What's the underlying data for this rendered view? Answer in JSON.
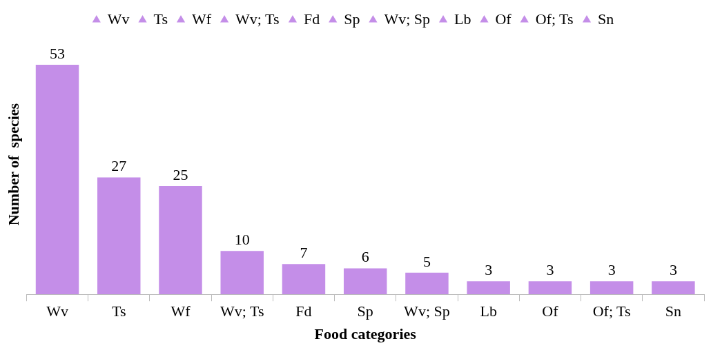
{
  "chart_data": {
    "type": "bar",
    "xlabel": "Food categories",
    "ylabel": "Number of  species",
    "categories": [
      "Wv",
      "Ts",
      "Wf",
      "Wv; Ts",
      "Fd",
      "Sp",
      "Wv; Sp",
      "Lb",
      "Of",
      "Of; Ts",
      "Sn"
    ],
    "series": [
      {
        "name": "Wv",
        "color": "#c48ee8",
        "values": [
          53,
          null,
          null,
          null,
          null,
          null,
          null,
          null,
          null,
          null,
          null
        ]
      },
      {
        "name": "Ts",
        "color": "#c48ee8",
        "values": [
          null,
          27,
          null,
          null,
          null,
          null,
          null,
          null,
          null,
          null,
          null
        ]
      },
      {
        "name": "Wf",
        "color": "#c48ee8",
        "values": [
          null,
          null,
          25,
          null,
          null,
          null,
          null,
          null,
          null,
          null,
          null
        ]
      },
      {
        "name": "Wv; Ts",
        "color": "#c48ee8",
        "values": [
          null,
          null,
          null,
          10,
          null,
          null,
          null,
          null,
          null,
          null,
          null
        ]
      },
      {
        "name": "Fd",
        "color": "#c48ee8",
        "values": [
          null,
          null,
          null,
          null,
          7,
          null,
          null,
          null,
          null,
          null,
          null
        ]
      },
      {
        "name": "Sp",
        "color": "#c48ee8",
        "values": [
          null,
          null,
          null,
          null,
          null,
          6,
          null,
          null,
          null,
          null,
          null
        ]
      },
      {
        "name": "Wv; Sp",
        "color": "#c48ee8",
        "values": [
          null,
          null,
          null,
          null,
          null,
          null,
          5,
          null,
          null,
          null,
          null
        ]
      },
      {
        "name": "Lb",
        "color": "#c48ee8",
        "values": [
          null,
          null,
          null,
          null,
          null,
          null,
          null,
          3,
          null,
          null,
          null
        ]
      },
      {
        "name": "Of",
        "color": "#c48ee8",
        "values": [
          null,
          null,
          null,
          null,
          null,
          null,
          null,
          null,
          3,
          null,
          null
        ]
      },
      {
        "name": "Of; Ts",
        "color": "#c48ee8",
        "values": [
          null,
          null,
          null,
          null,
          null,
          null,
          null,
          null,
          null,
          3,
          null
        ]
      },
      {
        "name": "Sn",
        "color": "#c48ee8",
        "values": [
          null,
          null,
          null,
          null,
          null,
          null,
          null,
          null,
          null,
          null,
          3
        ]
      }
    ],
    "data_labels": true,
    "legend": "top",
    "marker": "triangle"
  }
}
